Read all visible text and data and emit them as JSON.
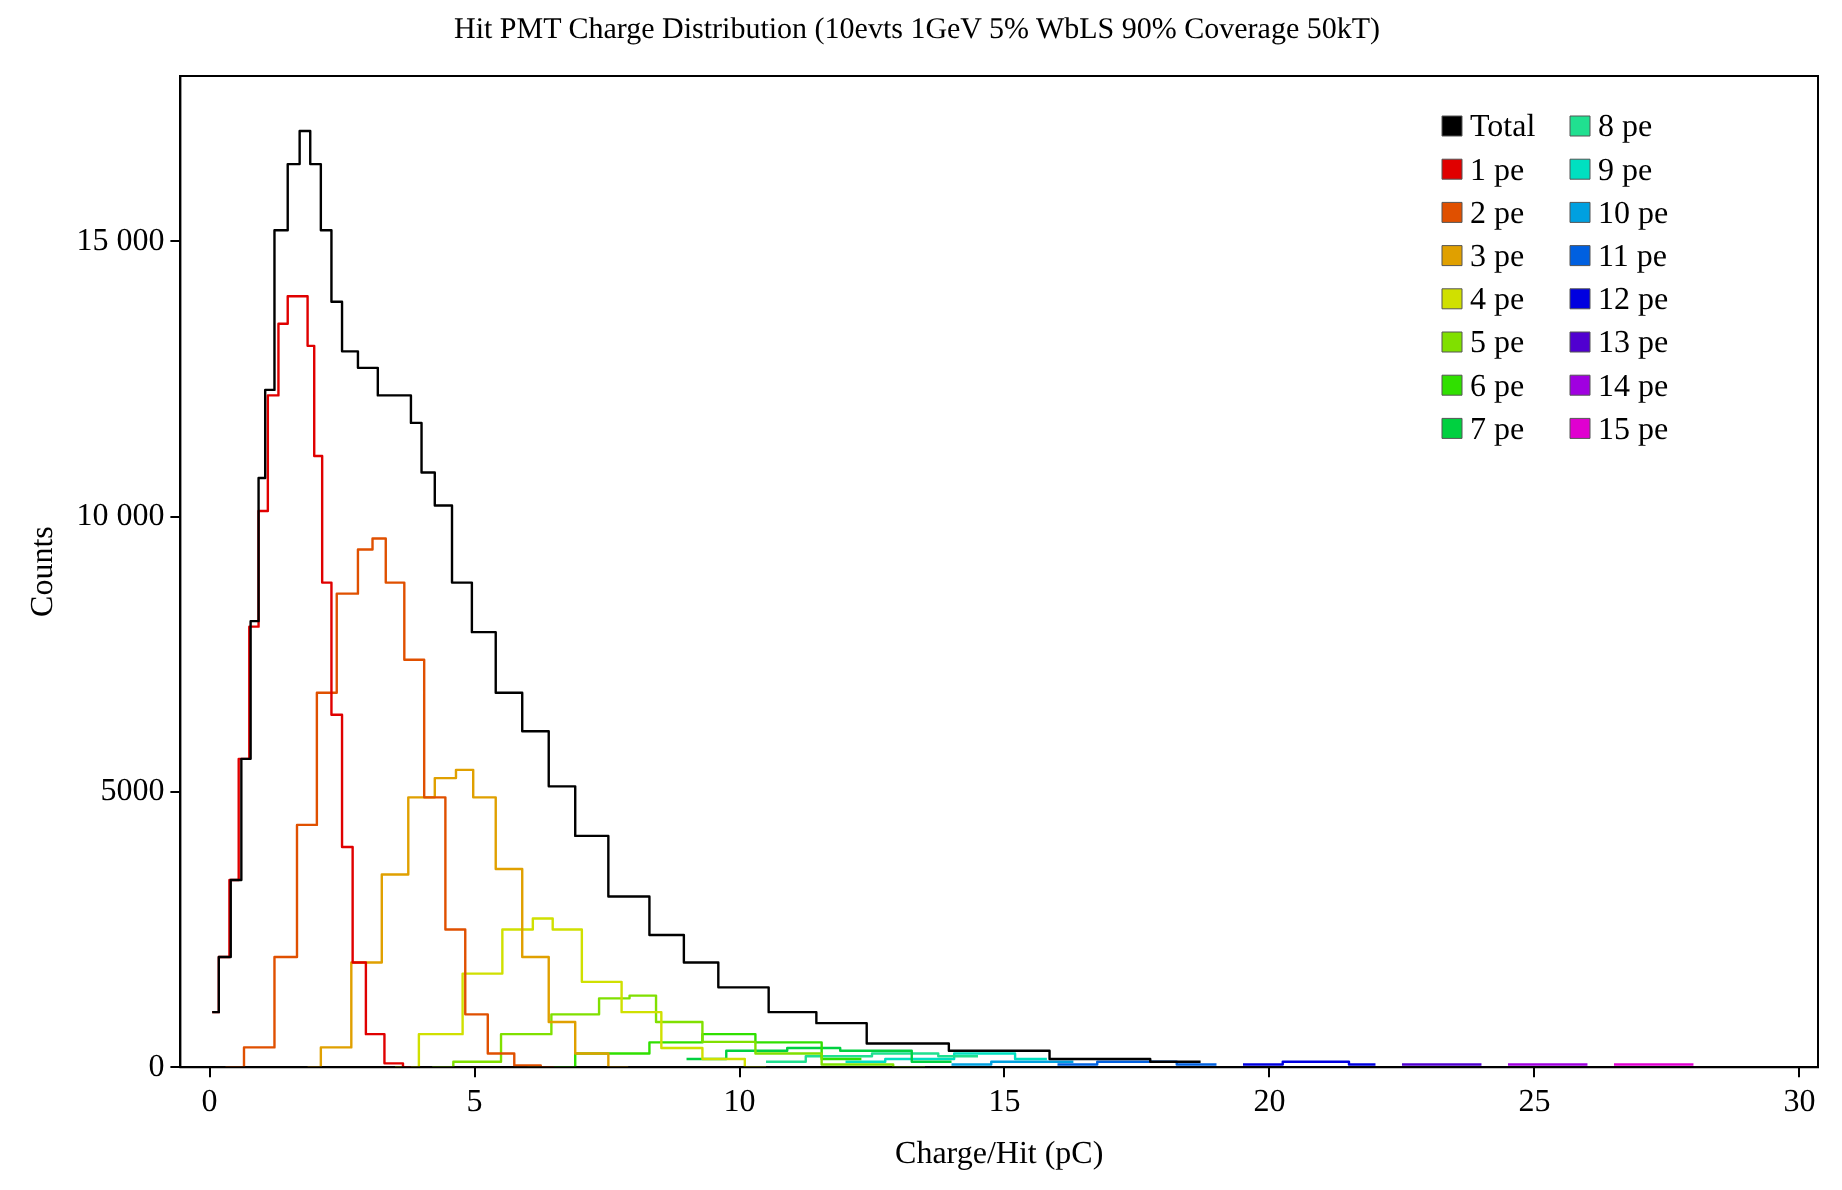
{
  "chart_data": {
    "type": "step",
    "title": "Hit PMT Charge Distribution (10evts 1GeV 5% WbLS 90% Coverage 50kT)",
    "xlabel": "Charge/Hit (pC)",
    "ylabel": "Counts",
    "xlim": [
      -0.55,
      30.35
    ],
    "ylim": [
      0,
      18000
    ],
    "xticks": [
      0,
      5,
      10,
      15,
      20,
      25,
      30
    ],
    "yticks": [
      0,
      5000,
      {
        "value": 10000,
        "label": "10 000"
      },
      {
        "value": 15000,
        "label": "15 000"
      }
    ],
    "grid": false,
    "legend": "top right",
    "marker": "none",
    "line_style": "solid",
    "series": [
      {
        "name": "Total",
        "color": "#000000",
        "x": [
          0.05,
          0.3,
          0.5,
          0.7,
          0.85,
          1,
          1.1,
          1.35,
          1.6,
          1.8,
          2,
          2.2,
          2.4,
          2.6,
          3,
          3.35,
          3.7,
          3.9,
          4.1,
          4.4,
          4.75,
          5.15,
          5.65,
          6.15,
          6.65,
          7.15,
          7.9,
          8.7,
          9.2,
          10,
          11.1,
          11.8,
          13,
          14.9,
          16.8,
          18.7
        ],
        "values": [
          1000,
          2000,
          3400,
          5600,
          8100,
          10700,
          12300,
          15200,
          16400,
          17000,
          16400,
          15200,
          13900,
          13000,
          12700,
          12200,
          12200,
          11700,
          10800,
          10200,
          8800,
          7900,
          6800,
          6100,
          5100,
          4200,
          3100,
          2400,
          1900,
          1450,
          1000,
          800,
          430,
          300,
          150,
          100
        ]
      },
      {
        "name": "1 pe",
        "color": "#e00000",
        "x": [
          0.05,
          0.3,
          0.45,
          0.65,
          0.85,
          1,
          1.2,
          1.4,
          1.55,
          1.8,
          1.9,
          2.05,
          2.2,
          2.4,
          2.6,
          2.8,
          3.1,
          3.5,
          3.8
        ],
        "values": [
          1000,
          2000,
          3400,
          5600,
          8000,
          10100,
          12200,
          13500,
          14000,
          14000,
          13100,
          11100,
          8800,
          6400,
          4000,
          1900,
          600,
          70,
          0
        ]
      },
      {
        "name": "2 pe",
        "color": "#e05000",
        "x": [
          0.3,
          1,
          1.45,
          1.85,
          2.2,
          2.6,
          3,
          3.15,
          3.5,
          3.85,
          4.25,
          4.65,
          5,
          5.5,
          6,
          6.5
        ],
        "values": [
          0,
          360,
          2000,
          4400,
          6800,
          8600,
          9400,
          9600,
          8800,
          7400,
          4900,
          2500,
          960,
          250,
          30,
          0
        ]
      },
      {
        "name": "3 pe",
        "color": "#e0a000",
        "x": [
          1.85,
          2.35,
          3,
          3.5,
          4,
          4.5,
          4.8,
          5.15,
          5.65,
          6.15,
          6.65,
          7.15,
          7.9
        ],
        "values": [
          0,
          360,
          1900,
          3500,
          4900,
          5250,
          5400,
          4900,
          3600,
          2000,
          820,
          250,
          0
        ]
      },
      {
        "name": "4 pe",
        "color": "#d0e000",
        "x": [
          3.5,
          4.4,
          5.15,
          5.9,
          6.3,
          6.65,
          7.4,
          8.15,
          8.9,
          9.7,
          10.5
        ],
        "values": [
          0,
          600,
          1700,
          2500,
          2700,
          2500,
          1550,
          1000,
          350,
          150,
          0
        ]
      },
      {
        "name": "5 pe",
        "color": "#80e000",
        "x": [
          4.2,
          5,
          6,
          6.9,
          7.8,
          8.05,
          8.8,
          9.8,
          10.8,
          12.3,
          13.5
        ],
        "values": [
          0,
          100,
          600,
          960,
          1250,
          1300,
          820,
          460,
          250,
          50,
          0
        ]
      },
      {
        "name": "6 pe",
        "color": "#30e000",
        "x": [
          6,
          7.8,
          8.8,
          9.8,
          10.8,
          12.3
        ],
        "values": [
          0,
          250,
          450,
          600,
          450,
          150
        ]
      },
      {
        "name": "7 pe",
        "color": "#00d040",
        "x": [
          9,
          10.5,
          11.3,
          12.5,
          14
        ],
        "values": [
          150,
          300,
          350,
          300,
          100
        ]
      },
      {
        "name": "8 pe",
        "color": "#20e090",
        "x": [
          10.5,
          12,
          13,
          14.5
        ],
        "values": [
          100,
          200,
          250,
          200
        ]
      },
      {
        "name": "9 pe",
        "color": "#00e0c0",
        "x": [
          12,
          13.5,
          14.6,
          15.8
        ],
        "values": [
          100,
          150,
          250,
          150
        ]
      },
      {
        "name": "10 pe",
        "color": "#00a0e0",
        "x": [
          14,
          15.5,
          16.3
        ],
        "values": [
          50,
          100,
          100
        ]
      },
      {
        "name": "11 pe",
        "color": "#0060e0",
        "x": [
          16,
          17.5,
          19
        ],
        "values": [
          50,
          100,
          50
        ]
      },
      {
        "name": "12 pe",
        "color": "#0000e0",
        "x": [
          19.5,
          21,
          22
        ],
        "values": [
          50,
          100,
          50
        ]
      },
      {
        "name": "13 pe",
        "color": "#5000d0",
        "x": [
          22.5,
          24
        ],
        "values": [
          50,
          50
        ]
      },
      {
        "name": "14 pe",
        "color": "#a000e0",
        "x": [
          24.5,
          26
        ],
        "values": [
          50,
          50
        ]
      },
      {
        "name": "15 pe",
        "color": "#e000d0",
        "x": [
          26.5,
          28
        ],
        "values": [
          50,
          50
        ]
      }
    ]
  }
}
